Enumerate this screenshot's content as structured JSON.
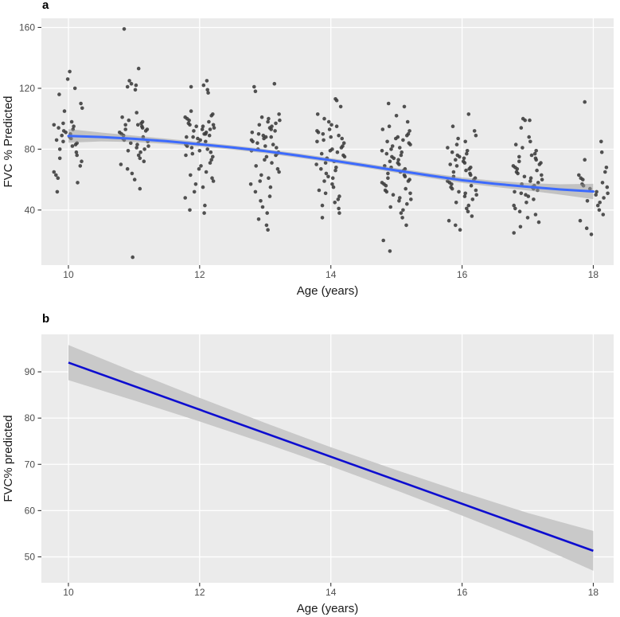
{
  "figure": {
    "background": "#ffffff",
    "panel_bg": "#ebebeb",
    "grid_color": "#ffffff",
    "tick_mark_color": "#333333",
    "tick_label_color": "#4d4d4d",
    "axis_title_color": "#1a1a1a"
  },
  "chart_data": [
    {
      "id": "panel-a",
      "panel_label": "a",
      "type": "scatter",
      "title": "",
      "xlabel": "Age (years)",
      "ylabel": "FVC % Predicted",
      "xlim": [
        9.588,
        18.31
      ],
      "ylim": [
        3.8,
        166
      ],
      "xticks": [
        10,
        12,
        14,
        16,
        18
      ],
      "yticks": [
        40,
        80,
        120,
        160
      ],
      "grid": "major-only",
      "legend": "none",
      "point_color": "#3a3a3a",
      "smooth_color": "#3c6afe",
      "band_color": "#999999",
      "jitter": [
        0.02,
        -0.12,
        0.15,
        -0.05,
        0.2,
        -0.18,
        0.08,
        -0.01,
        0.12,
        -0.2,
        0.05,
        0.18,
        -0.08,
        -0.15,
        0.1,
        0,
        -0.1,
        0.22,
        -0.22,
        0.13,
        0.07,
        -0.14,
        0.17,
        -0.03,
        0.04,
        -0.19,
        0.11,
        -0.07,
        0.19,
        -0.11,
        0.01,
        0.16,
        -0.16,
        0.06,
        -0.04,
        0.21,
        -0.21,
        0.09,
        -0.09,
        0.14,
        -0.13,
        0.03,
        -0.06,
        0.2,
        -0.02,
        0.1,
        -0.17,
        0.12,
        -0.1,
        0.05,
        0.18,
        -0.21,
        0.07,
        -0.15,
        0.13,
        0.02,
        -0.08,
        0.16,
        -0.19,
        0.09,
        0.21,
        -0.13,
        0.04,
        -0.22
      ],
      "clusters": [
        {
          "age": 10,
          "values": [
            131,
            126,
            120,
            116,
            110,
            107,
            105,
            98,
            97,
            96,
            95,
            94,
            93,
            92,
            91,
            90,
            89,
            88,
            87,
            86,
            85,
            84,
            83,
            82,
            80,
            78,
            76,
            74,
            72,
            69,
            65,
            63,
            61,
            58,
            52
          ]
        },
        {
          "age": 11,
          "values": [
            159,
            133,
            125,
            123,
            122,
            121,
            119,
            104,
            101,
            99,
            98,
            97,
            96,
            96,
            95,
            94,
            93,
            93,
            92,
            91,
            90,
            89,
            88,
            87,
            86,
            85,
            84,
            83,
            82,
            81,
            80,
            79,
            78,
            76,
            74,
            72,
            70,
            67,
            64,
            60,
            54,
            9
          ]
        },
        {
          "age": 12,
          "values": [
            125,
            122,
            121,
            119,
            117,
            105,
            103,
            102,
            101,
            100,
            99,
            98,
            97,
            96,
            96,
            95,
            95,
            94,
            93,
            93,
            92,
            91,
            90,
            90,
            89,
            88,
            88,
            87,
            86,
            85,
            84,
            83,
            82,
            81,
            80,
            79,
            78,
            77,
            76,
            75,
            73,
            71,
            69,
            67,
            65,
            63,
            61,
            59,
            57,
            55,
            52,
            48,
            43,
            40,
            38
          ]
        },
        {
          "age": 13,
          "values": [
            123,
            121,
            118,
            103,
            101,
            100,
            99,
            98,
            97,
            96,
            95,
            94,
            93,
            92,
            91,
            90,
            89,
            88,
            88,
            87,
            86,
            85,
            84,
            83,
            82,
            81,
            80,
            79,
            78,
            77,
            76,
            75,
            73,
            71,
            69,
            67,
            65,
            63,
            61,
            59,
            57,
            55,
            52,
            49,
            46,
            42,
            38,
            34,
            30,
            27
          ]
        },
        {
          "age": 14,
          "values": [
            113,
            112,
            108,
            103,
            100,
            98,
            96,
            95,
            93,
            92,
            91,
            90,
            89,
            88,
            87,
            86,
            85,
            84,
            82,
            81,
            80,
            79,
            78,
            77,
            76,
            75,
            74,
            72,
            71,
            70,
            68,
            67,
            66,
            64,
            62,
            61,
            59,
            57,
            55,
            53,
            51,
            49,
            47,
            45,
            43,
            41,
            38,
            35
          ]
        },
        {
          "age": 15,
          "values": [
            110,
            108,
            102,
            98,
            95,
            93,
            92,
            90,
            89,
            88,
            87,
            86,
            85,
            84,
            83,
            82,
            81,
            80,
            79,
            78,
            77,
            76,
            75,
            74,
            73,
            72,
            71,
            70,
            69,
            68,
            67,
            66,
            65,
            64,
            63,
            62,
            61,
            60,
            59,
            58,
            57,
            56,
            54,
            53,
            52,
            51,
            50,
            48,
            47,
            46,
            44,
            42,
            40,
            38,
            35,
            30,
            20,
            13
          ]
        },
        {
          "age": 16,
          "values": [
            103,
            95,
            92,
            89,
            87,
            85,
            83,
            81,
            79,
            78,
            77,
            76,
            75,
            74,
            73,
            72,
            71,
            70,
            69,
            68,
            67,
            66,
            65,
            64,
            63,
            62,
            61,
            60,
            59,
            58,
            57,
            56,
            55,
            54,
            53,
            52,
            51,
            50,
            49,
            47,
            45,
            43,
            41,
            39,
            36,
            33,
            30,
            27
          ]
        },
        {
          "age": 17,
          "values": [
            100,
            99,
            99,
            94,
            88,
            85,
            83,
            81,
            79,
            77,
            76,
            75,
            74,
            73,
            72,
            71,
            70,
            69,
            68,
            67,
            66,
            65,
            64,
            63,
            62,
            61,
            60,
            59,
            58,
            57,
            56,
            55,
            54,
            53,
            52,
            51,
            50,
            49,
            47,
            45,
            43,
            41,
            39,
            37,
            35,
            32,
            29,
            25
          ]
        },
        {
          "age": 18,
          "values": [
            111,
            85,
            78,
            73,
            68,
            65,
            63,
            61,
            60,
            58,
            57,
            56,
            55,
            54,
            52,
            51,
            50,
            48,
            46,
            45,
            43,
            40,
            37,
            33,
            28,
            24
          ]
        }
      ],
      "smooth": {
        "x": [
          10,
          10.5,
          11,
          11.5,
          12,
          12.5,
          13,
          13.5,
          14,
          14.5,
          15,
          15.5,
          16,
          16.5,
          17,
          17.5,
          18
        ],
        "y": [
          88.7,
          88,
          86.8,
          85.2,
          83.2,
          81.1,
          78.7,
          75.8,
          72.7,
          69.4,
          66,
          62.7,
          59.6,
          57.2,
          55.3,
          53.5,
          52.2
        ],
        "ci": [
          4.5,
          2.9,
          2.1,
          1.7,
          1.5,
          1.4,
          1.4,
          1.4,
          1.4,
          1.4,
          1.5,
          1.6,
          1.8,
          2,
          2.4,
          3.4,
          5
        ]
      }
    },
    {
      "id": "panel-b",
      "panel_label": "b",
      "type": "line",
      "title": "",
      "xlabel": "Age (years)",
      "ylabel": "FVC% predicted",
      "xlim": [
        9.588,
        18.31
      ],
      "ylim": [
        44.4,
        98.1
      ],
      "xticks": [
        10,
        12,
        14,
        16,
        18
      ],
      "yticks": [
        50,
        60,
        70,
        80,
        90
      ],
      "grid": "major-only",
      "legend": "none",
      "line_color": "#0d0dd0",
      "band_color": "#c9c9c9",
      "line": {
        "x": [
          10,
          18
        ],
        "y": [
          92.0,
          51.3
        ]
      },
      "band": {
        "x": [
          10,
          11,
          12,
          13,
          14,
          15,
          16,
          17,
          18
        ],
        "half_width": [
          3.8,
          3.1,
          2.55,
          2.2,
          2.05,
          2.2,
          2.55,
          3.1,
          4.3
        ]
      }
    }
  ]
}
